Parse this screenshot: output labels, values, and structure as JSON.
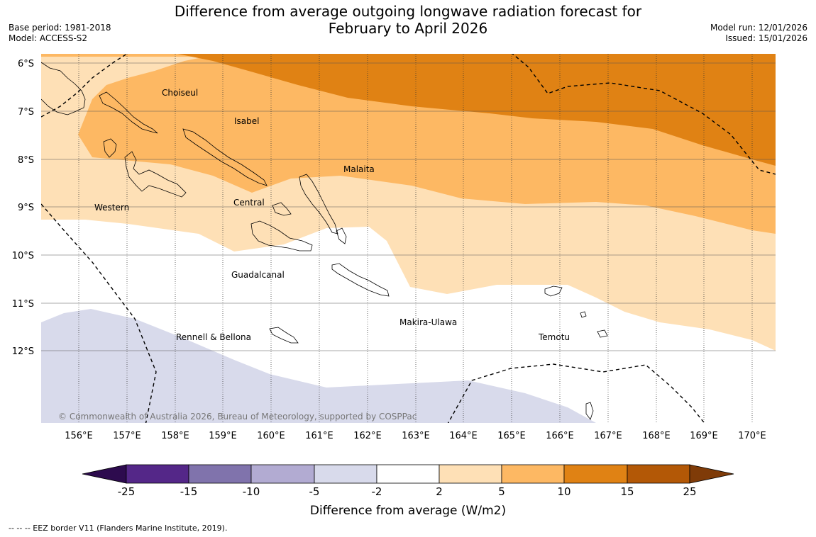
{
  "title_line1": "Difference from average outgoing longwave radiation forecast for",
  "title_line2": "February to April 2026",
  "meta_left": {
    "base_period": "Base period: 1981-2018",
    "model": "Model: ACCESS-S2"
  },
  "meta_right": {
    "model_run": "Model run: 12/01/2026",
    "issued": "Issued: 15/01/2026"
  },
  "lat_labels": [
    "6°S",
    "7°S",
    "8°S",
    "9°S",
    "10°S",
    "11°S",
    "12°S"
  ],
  "lon_labels": [
    "156°E",
    "157°E",
    "158°E",
    "159°E",
    "160°E",
    "161°E",
    "162°E",
    "163°E",
    "164°E",
    "165°E",
    "166°E",
    "167°E",
    "168°E",
    "169°E",
    "170°E"
  ],
  "regions": [
    "Choiseul",
    "Isabel",
    "Malaita",
    "Western",
    "Central",
    "Guadalcanal",
    "Makira-Ulawa",
    "Rennell & Bellona",
    "Temotu"
  ],
  "credit": "© Commonwealth of Australia 2026, Bureau of Meteorology, supported by COSPPac",
  "colorbar": {
    "title": "Difference from average (W/m2)",
    "ticks": [
      "-25",
      "-15",
      "-10",
      "-5",
      "-2",
      "2",
      "5",
      "10",
      "15",
      "25"
    ],
    "colors": [
      "#2d0b4e",
      "#542788",
      "#8073ac",
      "#b2abd2",
      "#d8daeb",
      "#ffffff",
      "#fee0b6",
      "#fdb863",
      "#e08214",
      "#b35806",
      "#7f3b08"
    ]
  },
  "footnote": "--  --  -- EEZ border V11 (Flanders Marine Institute, 2019)."
}
